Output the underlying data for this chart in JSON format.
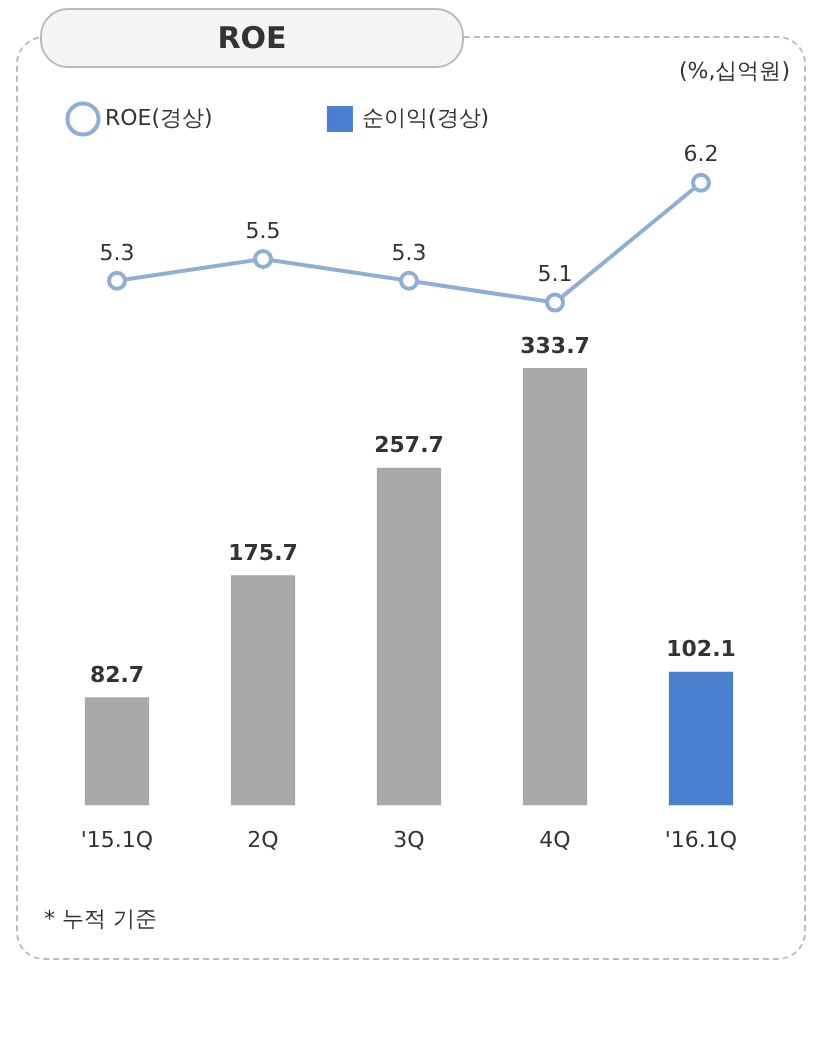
{
  "chart_data": [
    {
      "type": "line",
      "title": "ROE",
      "subtitle": "(%,십억원)",
      "categories": [
        null,
        null,
        null,
        null,
        null
      ],
      "series": [
        {
          "name": "ROE(경상)",
          "color": "#8eaed6",
          "values": [
            5.3,
            5.5,
            5.3,
            5.1,
            6.2
          ]
        }
      ],
      "tick_labels": false,
      "grid": false,
      "legend": "top left",
      "marker": "circle",
      "line_style": "solid",
      "data_labels": true
    },
    {
      "type": "bar",
      "categories": [
        "'15.1Q",
        "2Q",
        "3Q",
        "4Q",
        "'16.1Q"
      ],
      "series": [
        {
          "name": "순이익(경상)",
          "color": "#4a7fcf",
          "colors": [
            "#a9a9a9",
            "#a9a9a9",
            "#a9a9a9",
            "#a9a9a9",
            "#4a7fcf"
          ],
          "values": [
            82.7,
            175.7,
            257.7,
            333.7,
            102.1
          ]
        }
      ],
      "tick_labels": "x",
      "grid": false,
      "legend": "top",
      "data_labels": true,
      "annotations": [
        "* 누적 기준"
      ]
    }
  ]
}
